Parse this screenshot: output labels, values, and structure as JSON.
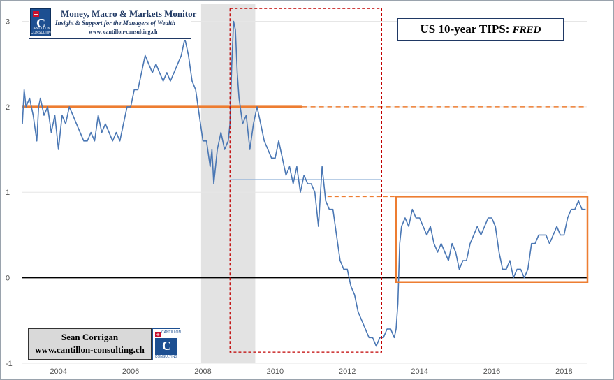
{
  "header": {
    "title": "Money, Macro & Markets Monitor",
    "tagline": "Insight & Support for the Managers of Wealth",
    "url": "www. cantillon-consulting.ch",
    "logo_caption": "CANTILLON CONSULTING"
  },
  "chart_title": {
    "main": "US 10-year TIPS:",
    "source": "FRED"
  },
  "author": {
    "name": "Sean Corrigan",
    "url": "www.cantillon-consulting.ch"
  },
  "colors": {
    "series": "#4a77b4",
    "orange": "#ed7d31",
    "red": "#c00000",
    "recession": "#e3e3e3",
    "zero": "#000000"
  },
  "chart_data": {
    "type": "line",
    "xlim": [
      2003.0,
      2018.65
    ],
    "ylim": [
      -1.0,
      3.2
    ],
    "x_ticks": [
      2004,
      2006,
      2008,
      2010,
      2012,
      2014,
      2016,
      2018
    ],
    "x_tick_labels": [
      "2004",
      "2006",
      "2008",
      "2010",
      "2012",
      "2014",
      "2016",
      "2018"
    ],
    "y_ticks": [
      -1,
      0,
      1,
      2,
      3
    ],
    "y_tick_labels": [
      "-1",
      "0",
      "1",
      "2",
      "3"
    ],
    "recession": [
      2007.95,
      2009.45
    ],
    "series": [
      {
        "x": [
          2003.0,
          2003.05,
          2003.1,
          2003.2,
          2003.3,
          2003.4,
          2003.45,
          2003.5,
          2003.6,
          2003.7,
          2003.8,
          2003.9,
          2004.0,
          2004.1,
          2004.2,
          2004.3,
          2004.4,
          2004.5,
          2004.6,
          2004.7,
          2004.8,
          2004.9,
          2005.0,
          2005.1,
          2005.2,
          2005.3,
          2005.4,
          2005.5,
          2005.6,
          2005.7,
          2005.8,
          2005.9,
          2006.0,
          2006.1,
          2006.2,
          2006.3,
          2006.4,
          2006.5,
          2006.6,
          2006.7,
          2006.8,
          2006.9,
          2007.0,
          2007.1,
          2007.2,
          2007.3,
          2007.4,
          2007.5,
          2007.55,
          2007.6,
          2007.7,
          2007.8,
          2007.9,
          2008.0,
          2008.1,
          2008.2,
          2008.25,
          2008.3,
          2008.4,
          2008.5,
          2008.6,
          2008.7,
          2008.75,
          2008.8,
          2008.85,
          2008.9,
          2008.95,
          2009.0,
          2009.1,
          2009.2,
          2009.3,
          2009.4,
          2009.5,
          2009.6,
          2009.7,
          2009.8,
          2009.9,
          2010.0,
          2010.1,
          2010.2,
          2010.3,
          2010.4,
          2010.5,
          2010.6,
          2010.7,
          2010.8,
          2010.9,
          2011.0,
          2011.1,
          2011.2,
          2011.3,
          2011.4,
          2011.5,
          2011.6,
          2011.7,
          2011.8,
          2011.9,
          2012.0,
          2012.1,
          2012.2,
          2012.3,
          2012.4,
          2012.5,
          2012.6,
          2012.7,
          2012.8,
          2012.9,
          2013.0,
          2013.1,
          2013.2,
          2013.3,
          2013.35,
          2013.4,
          2013.45,
          2013.5,
          2013.6,
          2013.7,
          2013.8,
          2013.9,
          2014.0,
          2014.1,
          2014.2,
          2014.3,
          2014.4,
          2014.5,
          2014.6,
          2014.7,
          2014.8,
          2014.9,
          2015.0,
          2015.1,
          2015.2,
          2015.3,
          2015.4,
          2015.5,
          2015.6,
          2015.7,
          2015.8,
          2015.9,
          2016.0,
          2016.1,
          2016.2,
          2016.3,
          2016.4,
          2016.5,
          2016.6,
          2016.7,
          2016.8,
          2016.9,
          2017.0,
          2017.1,
          2017.2,
          2017.3,
          2017.4,
          2017.5,
          2017.6,
          2017.7,
          2017.8,
          2017.9,
          2018.0,
          2018.1,
          2018.2,
          2018.3,
          2018.4,
          2018.5,
          2018.6
        ],
        "y": [
          1.8,
          2.2,
          2.0,
          2.1,
          1.9,
          1.6,
          2.0,
          2.1,
          1.9,
          2.0,
          1.7,
          1.9,
          1.5,
          1.9,
          1.8,
          2.0,
          1.9,
          1.8,
          1.7,
          1.6,
          1.6,
          1.7,
          1.6,
          1.9,
          1.7,
          1.8,
          1.7,
          1.6,
          1.7,
          1.6,
          1.8,
          2.0,
          2.0,
          2.2,
          2.2,
          2.4,
          2.6,
          2.5,
          2.4,
          2.5,
          2.4,
          2.3,
          2.4,
          2.3,
          2.4,
          2.5,
          2.6,
          2.8,
          2.7,
          2.6,
          2.3,
          2.2,
          1.9,
          1.6,
          1.6,
          1.3,
          1.5,
          1.1,
          1.5,
          1.7,
          1.5,
          1.6,
          1.8,
          2.5,
          3.0,
          2.9,
          2.4,
          2.1,
          1.8,
          1.9,
          1.5,
          1.8,
          2.0,
          1.8,
          1.6,
          1.5,
          1.4,
          1.4,
          1.6,
          1.4,
          1.2,
          1.3,
          1.1,
          1.3,
          1.0,
          1.2,
          1.1,
          1.1,
          1.0,
          0.6,
          1.3,
          0.9,
          0.8,
          0.8,
          0.5,
          0.2,
          0.1,
          0.1,
          -0.1,
          -0.2,
          -0.4,
          -0.5,
          -0.6,
          -0.7,
          -0.7,
          -0.8,
          -0.7,
          -0.7,
          -0.6,
          -0.6,
          -0.7,
          -0.6,
          -0.3,
          0.4,
          0.6,
          0.7,
          0.6,
          0.8,
          0.7,
          0.7,
          0.6,
          0.5,
          0.6,
          0.4,
          0.3,
          0.4,
          0.3,
          0.2,
          0.4,
          0.3,
          0.1,
          0.2,
          0.2,
          0.4,
          0.5,
          0.6,
          0.5,
          0.6,
          0.7,
          0.7,
          0.6,
          0.3,
          0.1,
          0.1,
          0.2,
          0.0,
          0.1,
          0.1,
          0.0,
          0.1,
          0.4,
          0.4,
          0.5,
          0.5,
          0.5,
          0.4,
          0.5,
          0.6,
          0.5,
          0.5,
          0.7,
          0.8,
          0.8,
          0.9,
          0.8,
          0.8
        ]
      }
    ],
    "annotations": {
      "orange_hline": 2.0,
      "orange_dashed_hline": 0.95,
      "blue_thin_hline": 1.15,
      "zero_line": 0,
      "range_box": {
        "x": [
          2013.35,
          2018.65
        ],
        "y": [
          -0.05,
          0.95
        ]
      },
      "red_dashed_box": {
        "x": [
          2008.75,
          2012.95
        ],
        "y": [
          -0.87,
          3.15
        ]
      }
    }
  }
}
